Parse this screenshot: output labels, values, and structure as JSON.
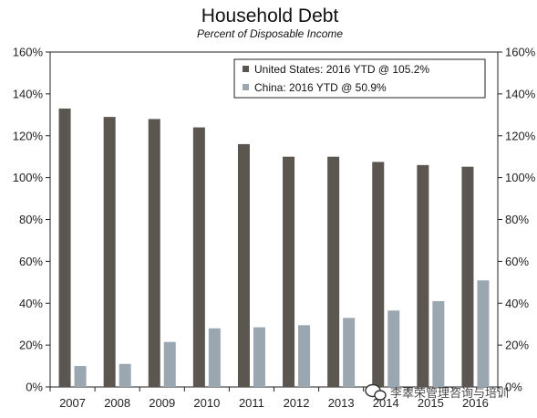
{
  "chart_data": {
    "type": "bar",
    "title": "Household Debt",
    "subtitle": "Percent of Disposable Income",
    "categories": [
      "2007",
      "2008",
      "2009",
      "2010",
      "2011",
      "2012",
      "2013",
      "2014",
      "2015",
      "2016"
    ],
    "series": [
      {
        "name": "United States: 2016 YTD @ 105.2%",
        "color": "#5b5650",
        "values": [
          133,
          129,
          128,
          124,
          116,
          110,
          110,
          107.5,
          106,
          105.2
        ]
      },
      {
        "name": "China: 2016 YTD @ 50.9%",
        "color": "#9aa7b0",
        "values": [
          10,
          11,
          21.5,
          28,
          28.5,
          29.5,
          33,
          36.5,
          41,
          50.9
        ]
      }
    ],
    "y_ticks": [
      "0%",
      "20%",
      "40%",
      "60%",
      "80%",
      "100%",
      "120%",
      "140%",
      "160%"
    ],
    "ylim": [
      0,
      160
    ],
    "grid": false,
    "legend_position": "top-right",
    "dual_y_axis": true
  },
  "watermark": {
    "text": "李翠荣管理咨询与培训",
    "icon": "wechat-icon"
  }
}
